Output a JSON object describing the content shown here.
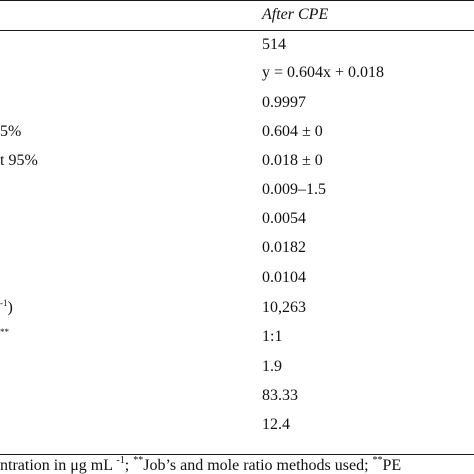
{
  "header": {
    "after_cpe": "After CPE"
  },
  "rows": [
    {
      "left_label": "",
      "left_sup": "",
      "value": "514"
    },
    {
      "left_label": "",
      "left_sup": "",
      "value": "y = 0.604x + 0.018"
    },
    {
      "left_label": "",
      "left_sup": "",
      "value": "0.9997"
    },
    {
      "left_label": "5%",
      "left_sup": "",
      "value": "0.604 ± 0"
    },
    {
      "left_label": "t 95%",
      "left_sup": "",
      "value": "0.018 ± 0"
    },
    {
      "left_label": "",
      "left_sup": "",
      "value": "0.009–1.5"
    },
    {
      "left_label": "",
      "left_sup": "",
      "value": "0.0054"
    },
    {
      "left_label": "",
      "left_sup": "",
      "value": "0.0182"
    },
    {
      "left_label": "",
      "left_sup": "",
      "value": "0.0104"
    },
    {
      "left_label": ")",
      "left_sup": "-1",
      "value": "10,263"
    },
    {
      "left_label": "",
      "left_sup": "**",
      "value": "1:1"
    },
    {
      "left_label": "",
      "left_sup": "",
      "value": "1.9"
    },
    {
      "left_label": "",
      "left_sup": "",
      "value": "83.33"
    },
    {
      "left_label": "",
      "left_sup": "",
      "value": "12.4"
    }
  ],
  "footnote": {
    "text_a": "ntration in μg mL ",
    "sup_a": "-1",
    "text_b": "; ",
    "sup_b": "**",
    "text_c": "Job’s and mole ratio methods used; ",
    "sup_c": "**",
    "text_d": "PE"
  }
}
